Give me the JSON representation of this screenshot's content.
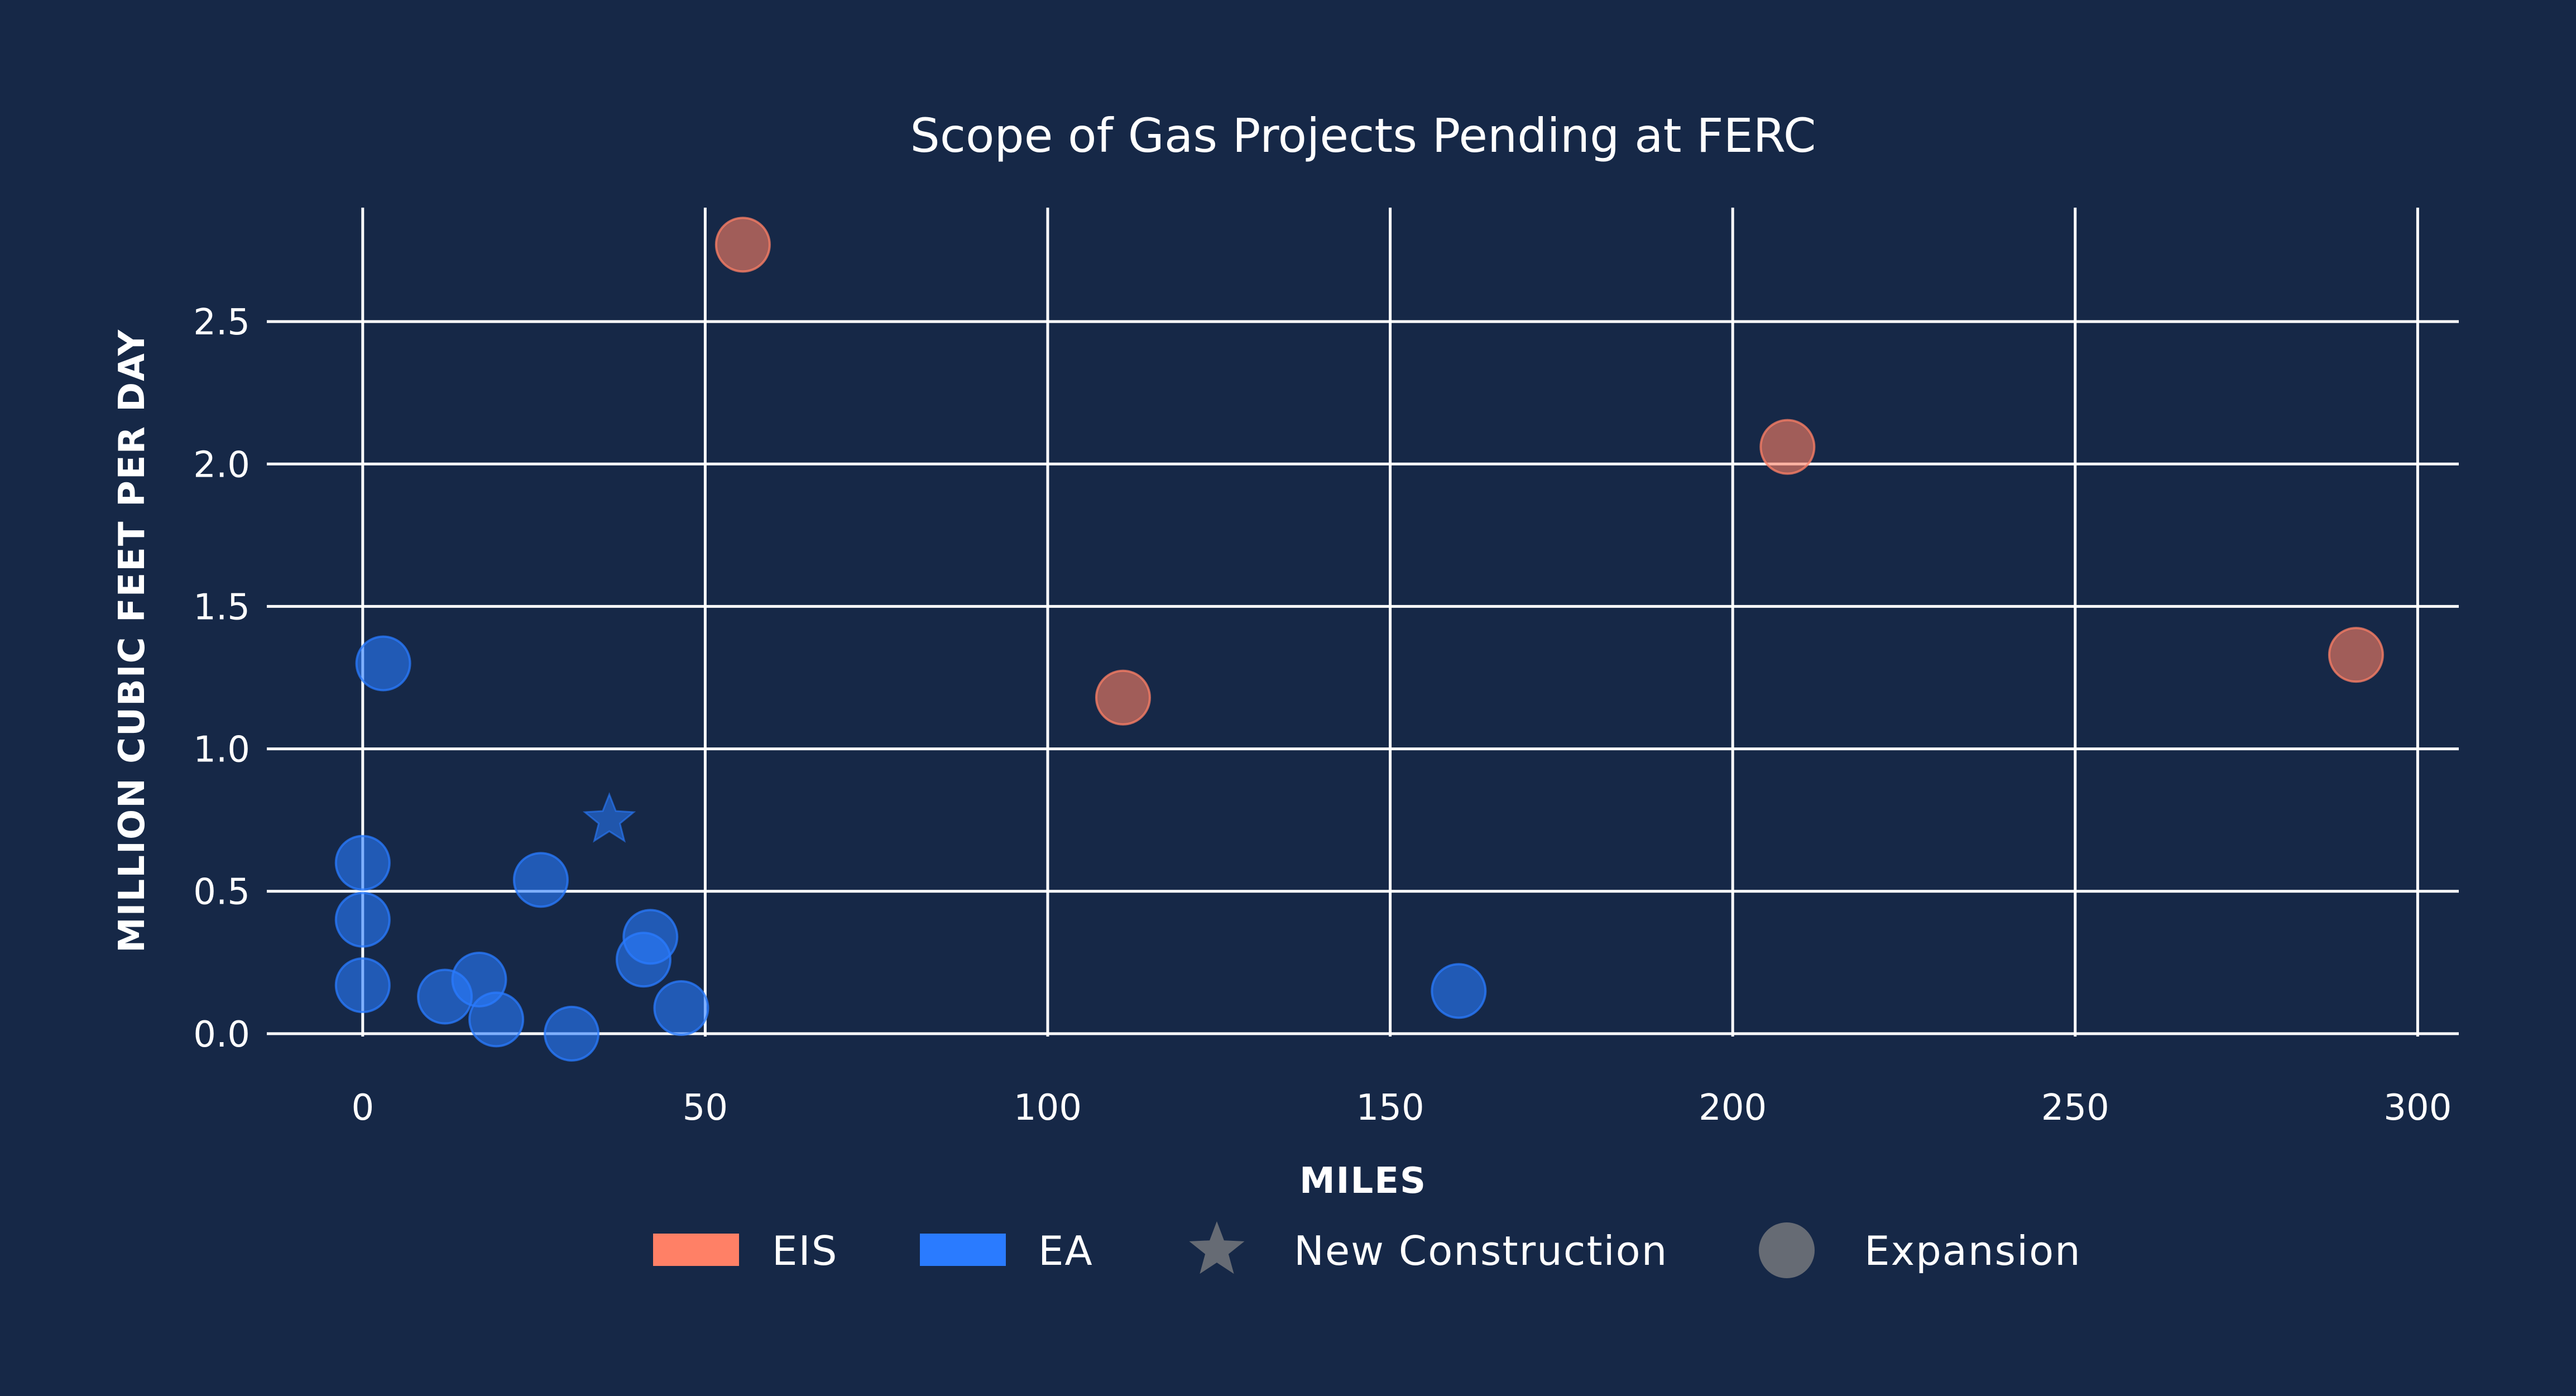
{
  "chart_data": {
    "type": "scatter",
    "title": "Scope of Gas Projects Pending at FERC",
    "xlabel": "MILES",
    "ylabel": "MILLION CUBIC FEET PER DAY",
    "xlim": [
      -14,
      306
    ],
    "ylim": [
      -0.01,
      2.9
    ],
    "x_ticks": [
      0,
      50,
      100,
      150,
      200,
      250,
      300
    ],
    "y_ticks": [
      0.0,
      0.5,
      1.0,
      1.5,
      2.0,
      2.5
    ],
    "x_tick_labels": [
      "0",
      "50",
      "100",
      "150",
      "200",
      "250",
      "300"
    ],
    "y_tick_labels": [
      "0.0",
      "0.5",
      "1.0",
      "1.5",
      "2.0",
      "2.5"
    ],
    "grid": true,
    "legend_position": "bottom",
    "colors": {
      "background": "#162847",
      "EIS": "#ff8066",
      "EA": "#2a7bff",
      "shape_legend": "#666b74"
    },
    "legend": [
      {
        "label": "EIS",
        "kind": "swatch",
        "color_key": "EIS"
      },
      {
        "label": "EA",
        "kind": "swatch",
        "color_key": "EA"
      },
      {
        "label": "New Construction",
        "kind": "star"
      },
      {
        "label": "Expansion",
        "kind": "circle"
      }
    ],
    "series": [
      {
        "name": "EIS",
        "points": [
          {
            "x": 55.5,
            "y": 2.77,
            "shape": "circle"
          },
          {
            "x": 111,
            "y": 1.18,
            "shape": "circle"
          },
          {
            "x": 208,
            "y": 2.06,
            "shape": "circle"
          },
          {
            "x": 291,
            "y": 1.33,
            "shape": "circle"
          }
        ]
      },
      {
        "name": "EA",
        "points": [
          {
            "x": 3,
            "y": 1.3,
            "shape": "circle"
          },
          {
            "x": 0,
            "y": 0.6,
            "shape": "circle"
          },
          {
            "x": 0,
            "y": 0.4,
            "shape": "circle"
          },
          {
            "x": 0,
            "y": 0.17,
            "shape": "circle"
          },
          {
            "x": 12,
            "y": 0.13,
            "shape": "circle"
          },
          {
            "x": 17,
            "y": 0.19,
            "shape": "circle"
          },
          {
            "x": 19.5,
            "y": 0.05,
            "shape": "circle"
          },
          {
            "x": 26,
            "y": 0.54,
            "shape": "circle"
          },
          {
            "x": 30.5,
            "y": 0.0,
            "shape": "circle"
          },
          {
            "x": 36,
            "y": 0.75,
            "shape": "star"
          },
          {
            "x": 41,
            "y": 0.26,
            "shape": "circle"
          },
          {
            "x": 42,
            "y": 0.34,
            "shape": "circle"
          },
          {
            "x": 46.5,
            "y": 0.09,
            "shape": "circle"
          },
          {
            "x": 160,
            "y": 0.15,
            "shape": "circle"
          }
        ]
      }
    ]
  }
}
